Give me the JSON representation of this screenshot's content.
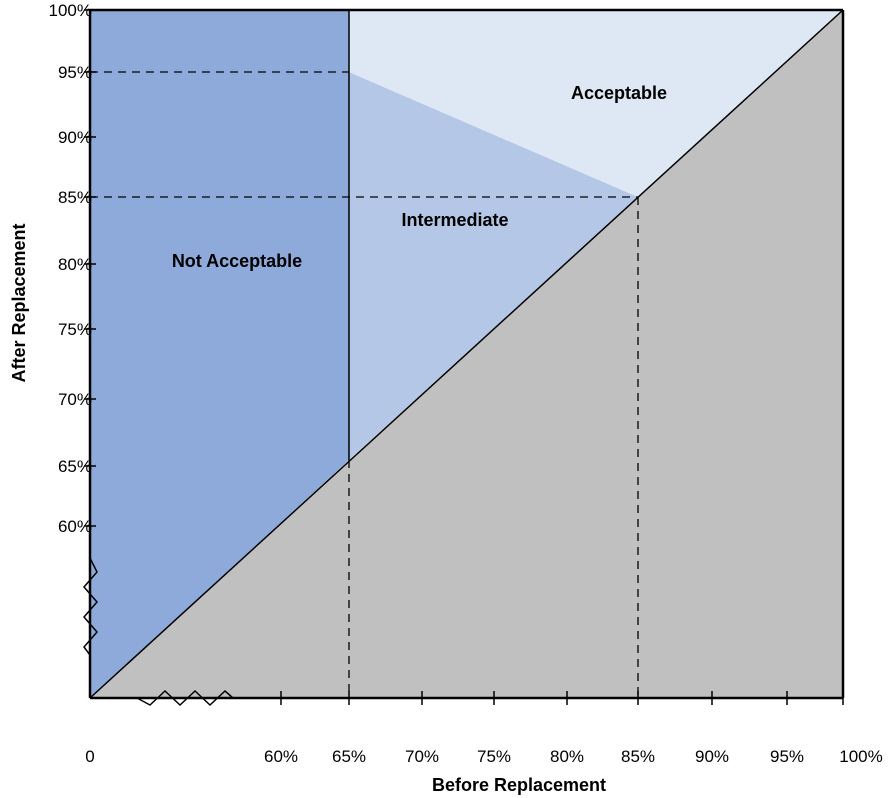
{
  "chart_data": {
    "type": "area",
    "xlabel": "Before Replacement",
    "ylabel": "After Replacement",
    "x_ticks": [
      "0",
      "60%",
      "65%",
      "70%",
      "75%",
      "80%",
      "85%",
      "90%",
      "95%",
      "100%"
    ],
    "y_ticks": [
      "100%",
      "95%",
      "90%",
      "85%",
      "80%",
      "75%",
      "70%",
      "65%",
      "60%"
    ],
    "axis_break": true,
    "regions": [
      {
        "label": "Not Acceptable",
        "x_range": [
          0,
          65
        ],
        "y_range": [
          0,
          100
        ],
        "color": "#8eaadb"
      },
      {
        "label": "Intermediate",
        "vertices": [
          [
            65,
            65
          ],
          [
            65,
            95
          ],
          [
            85,
            85
          ]
        ],
        "color": "#b4c7e7"
      },
      {
        "label": "Acceptable",
        "vertices": [
          [
            65,
            95
          ],
          [
            65,
            100
          ],
          [
            100,
            100
          ],
          [
            85,
            85
          ]
        ],
        "color": "#dee8f5"
      },
      {
        "label": "",
        "vertices": [
          [
            0,
            0
          ],
          [
            100,
            0
          ],
          [
            100,
            100
          ]
        ],
        "color": "#c0c0c0"
      }
    ],
    "reference_lines": [
      {
        "axis": "y",
        "value": 95,
        "x_range": [
          0,
          65
        ]
      },
      {
        "axis": "y",
        "value": 85,
        "x_range": [
          0,
          85
        ]
      },
      {
        "axis": "x",
        "value": 65,
        "y_range": [
          0,
          65
        ]
      },
      {
        "axis": "x",
        "value": 85,
        "y_range": [
          0,
          85
        ]
      }
    ],
    "boundary_lines": [
      {
        "from": [
          0,
          0
        ],
        "to": [
          100,
          100
        ]
      },
      {
        "from": [
          65,
          65
        ],
        "to": [
          65,
          100
        ]
      }
    ]
  }
}
